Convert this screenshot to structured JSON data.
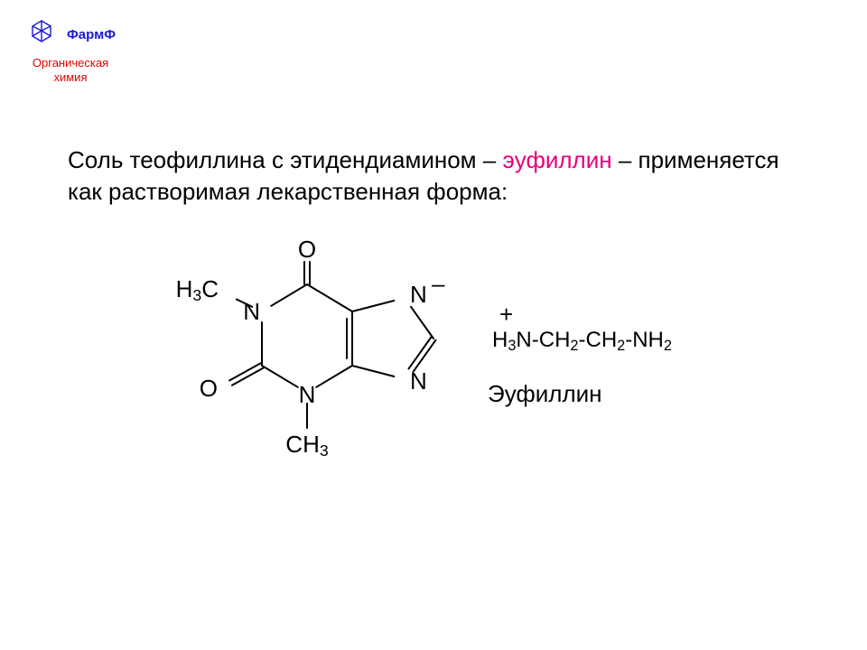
{
  "colors": {
    "brand": "#1a1ad6",
    "subject": "#e60000",
    "text": "#000000",
    "highlight": "#e6007e",
    "bond": "#000000",
    "background": "#ffffff"
  },
  "header": {
    "brand": "ФармФ",
    "subject_line1": "Органическая",
    "subject_line2": "химия"
  },
  "body": {
    "text_part1": "Соль теофиллина с этидендиамином – ",
    "text_highlight": "эуфиллин",
    "text_part2": " – применяется как растворимая лекарственная форма:"
  },
  "structure": {
    "label_cation_plus": "+",
    "label_cation": "H₃N-CH₂-CH₂-NH₂",
    "label_name": "Эуфиллин",
    "atoms": {
      "O_top": "O",
      "H3C_left": "H₃C",
      "N_upper_left": "N",
      "N_upper_right": "N",
      "O_left": "O",
      "N_lower_left": "N",
      "N_lower_right": "N",
      "CH3_bottom": "CH₃",
      "minus": "–"
    },
    "style": {
      "bond_width": 2,
      "atom_fontsize": 26,
      "label_fontsize": 24,
      "name_fontsize": 26
    }
  }
}
